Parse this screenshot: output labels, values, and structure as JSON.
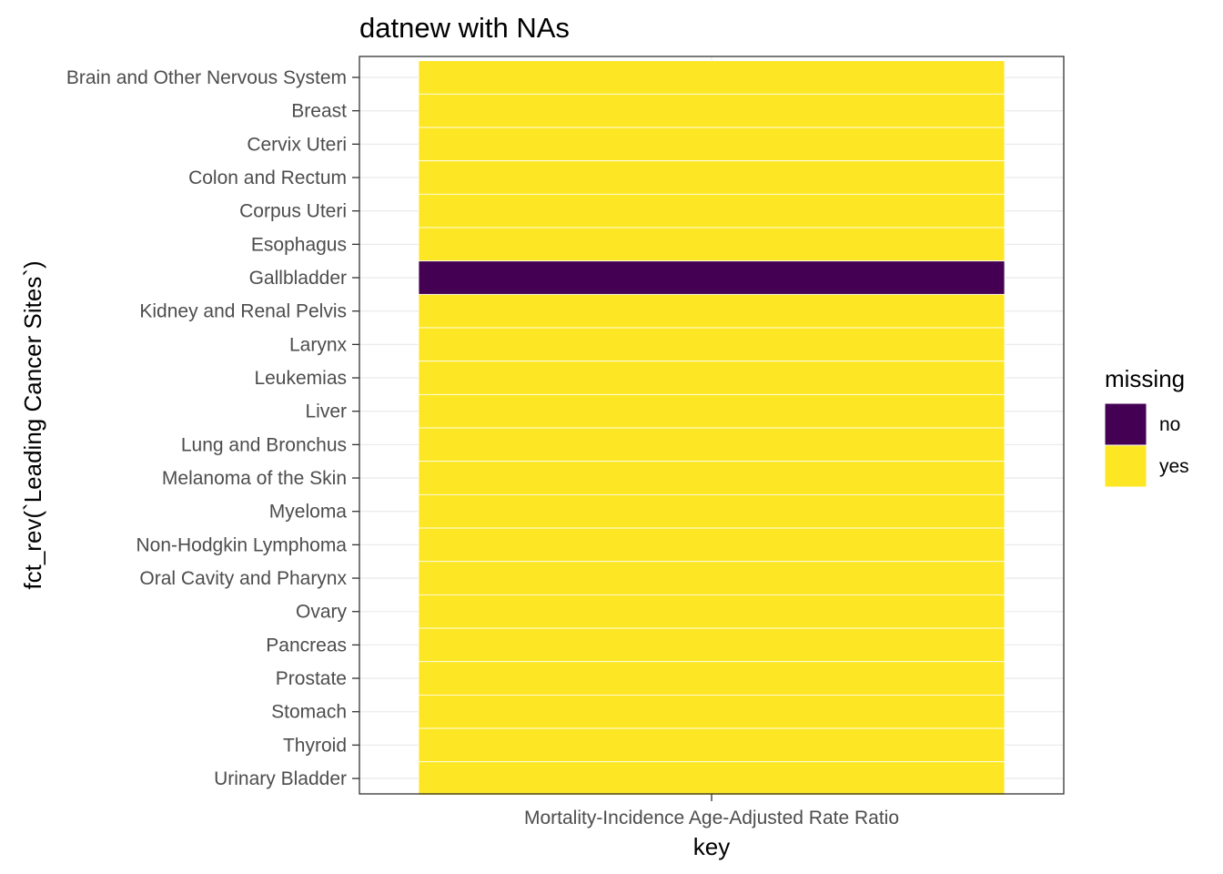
{
  "chart_data": {
    "type": "heatmap",
    "title": "datnew with NAs",
    "xlabel": "key",
    "ylabel": "fct_rev(`Leading Cancer Sites`)",
    "x_categories": [
      "Mortality-Incidence Age-Adjusted Rate Ratio"
    ],
    "y_categories": [
      "Brain and Other Nervous System",
      "Breast",
      "Cervix Uteri",
      "Colon and Rectum",
      "Corpus Uteri",
      "Esophagus",
      "Gallbladder",
      "Kidney and Renal Pelvis",
      "Larynx",
      "Leukemias",
      "Liver",
      "Lung and Bronchus",
      "Melanoma of the Skin",
      "Myeloma",
      "Non-Hodgkin Lymphoma",
      "Oral Cavity and Pharynx",
      "Ovary",
      "Pancreas",
      "Prostate",
      "Stomach",
      "Thyroid",
      "Urinary Bladder"
    ],
    "values": [
      "yes",
      "yes",
      "yes",
      "yes",
      "yes",
      "yes",
      "no",
      "yes",
      "yes",
      "yes",
      "yes",
      "yes",
      "yes",
      "yes",
      "yes",
      "yes",
      "yes",
      "yes",
      "yes",
      "yes",
      "yes",
      "yes"
    ],
    "legend": {
      "title": "missing",
      "position": "right",
      "entries": [
        {
          "label": "no",
          "color": "#440154"
        },
        {
          "label": "yes",
          "color": "#FDE725"
        }
      ]
    },
    "grid": true
  }
}
